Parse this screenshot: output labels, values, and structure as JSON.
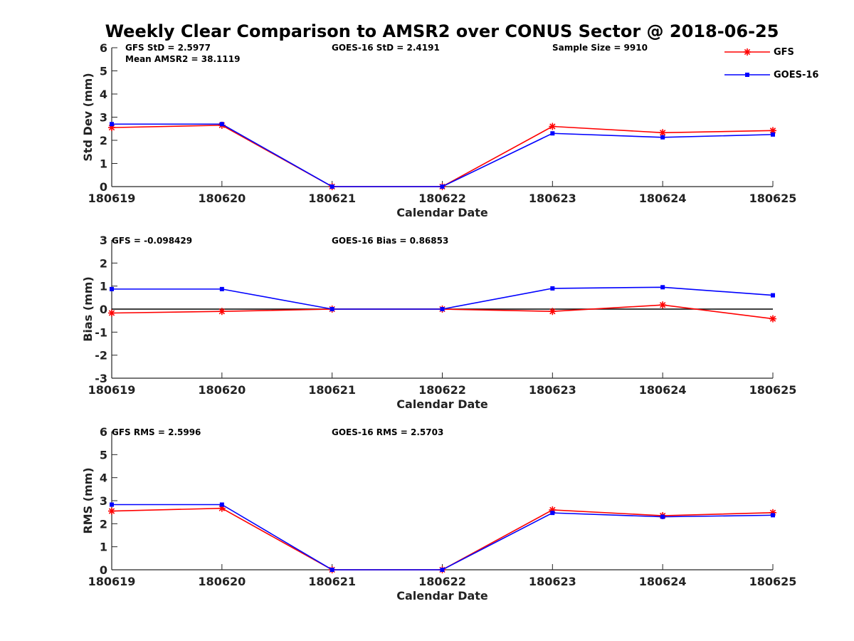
{
  "title": "Weekly Clear Comparison to AMSR2 over CONUS Sector @ 2018-06-25",
  "legend": [
    {
      "name": "GFS",
      "color": "#ff0000",
      "marker": "star"
    },
    {
      "name": "GOES-16",
      "color": "#0000ff",
      "marker": "square"
    }
  ],
  "panels": [
    {
      "annotations": {
        "gfs": "GFS StD = 2.5977",
        "mean": "Mean AMSR2 = 38.1119",
        "goes": "GOES-16 StD = 2.4191",
        "sample": "Sample Size = 9910"
      }
    },
    {
      "annotations": {
        "gfs": "GFS = -0.098429",
        "goes": "GOES-16 Bias  = 0.86853"
      }
    },
    {
      "annotations": {
        "gfs": "GFS RMS = 2.5996",
        "goes": "GOES-16 RMS = 2.5703"
      }
    }
  ],
  "chart_data": [
    {
      "type": "line",
      "title": "",
      "xlabel": "Calendar Date",
      "ylabel": "Std Dev (mm)",
      "categories": [
        "180619",
        "180620",
        "180621",
        "180622",
        "180623",
        "180624",
        "180625"
      ],
      "ylim": [
        0,
        6
      ],
      "yticks": [
        0,
        1,
        2,
        3,
        4,
        5,
        6
      ],
      "grid": false,
      "legend_position": "top-right",
      "series": [
        {
          "name": "GFS",
          "color": "#ff0000",
          "values": [
            2.55,
            2.65,
            0.0,
            0.0,
            2.6,
            2.33,
            2.42
          ]
        },
        {
          "name": "GOES-16",
          "color": "#0000ff",
          "values": [
            2.7,
            2.7,
            0.0,
            0.0,
            2.3,
            2.13,
            2.25
          ]
        }
      ]
    },
    {
      "type": "line",
      "title": "",
      "xlabel": "Calendar Date",
      "ylabel": "Bias (mm)",
      "categories": [
        "180619",
        "180620",
        "180621",
        "180622",
        "180623",
        "180624",
        "180625"
      ],
      "ylim": [
        -3,
        3
      ],
      "yticks": [
        -3,
        -2,
        -1,
        0,
        1,
        2,
        3
      ],
      "zero_line": true,
      "grid": false,
      "series": [
        {
          "name": "GFS",
          "color": "#ff0000",
          "values": [
            -0.17,
            -0.1,
            0.0,
            0.0,
            -0.1,
            0.18,
            -0.42
          ]
        },
        {
          "name": "GOES-16",
          "color": "#0000ff",
          "values": [
            0.87,
            0.87,
            0.0,
            0.0,
            0.9,
            0.95,
            0.6
          ]
        }
      ]
    },
    {
      "type": "line",
      "title": "",
      "xlabel": "Calendar Date",
      "ylabel": "RMS (mm)",
      "categories": [
        "180619",
        "180620",
        "180621",
        "180622",
        "180623",
        "180624",
        "180625"
      ],
      "ylim": [
        0,
        6
      ],
      "yticks": [
        0,
        1,
        2,
        3,
        4,
        5,
        6
      ],
      "grid": false,
      "series": [
        {
          "name": "GFS",
          "color": "#ff0000",
          "values": [
            2.55,
            2.67,
            0.0,
            0.0,
            2.6,
            2.35,
            2.48
          ]
        },
        {
          "name": "GOES-16",
          "color": "#0000ff",
          "values": [
            2.83,
            2.83,
            0.0,
            0.0,
            2.47,
            2.3,
            2.37
          ]
        }
      ]
    }
  ]
}
